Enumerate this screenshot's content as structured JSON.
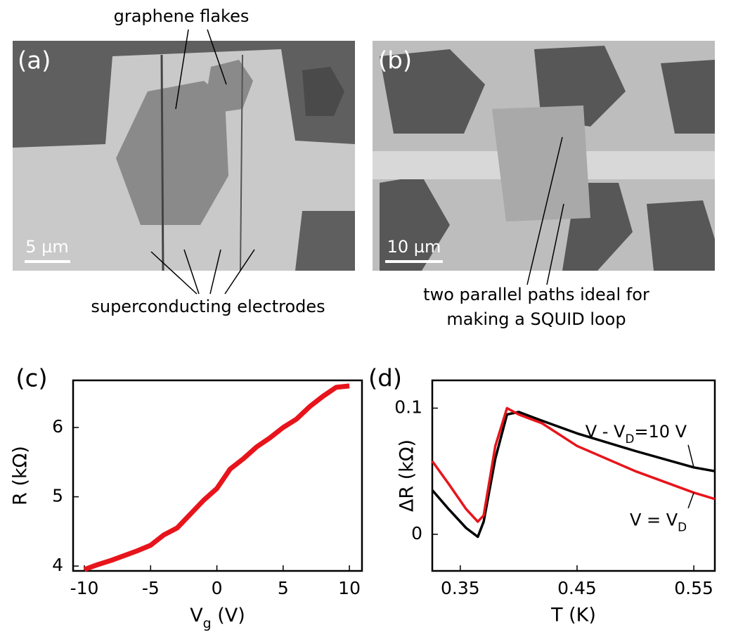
{
  "panels": {
    "a": {
      "label": "(a)",
      "scale_bar": "5 µm"
    },
    "b": {
      "label": "(b)",
      "scale_bar": "10 µm"
    }
  },
  "annotations": {
    "graphene_flakes": "graphene flakes",
    "electrodes": "superconducting electrodes",
    "squid": [
      "two parallel paths ideal for",
      "making a SQUID loop"
    ]
  },
  "chart_data": [
    {
      "type": "line",
      "panel_label": "(c)",
      "xlabel": [
        "V",
        "g",
        " (V)"
      ],
      "ylabel": "R (kΩ)",
      "color": "#e8141b",
      "x": [
        -10,
        -9,
        -8,
        -7,
        -6,
        -5,
        -4,
        -3,
        -2,
        -1,
        0,
        1,
        2,
        3,
        4,
        5,
        6,
        7,
        8,
        9,
        10
      ],
      "values": [
        3.95,
        4.02,
        4.08,
        4.15,
        4.22,
        4.3,
        4.45,
        4.55,
        4.75,
        4.95,
        5.12,
        5.4,
        5.55,
        5.72,
        5.85,
        6.0,
        6.12,
        6.3,
        6.45,
        6.58,
        6.6
      ],
      "xlim": [
        -10.85,
        10.95
      ],
      "xticks": [
        -10,
        -5,
        0,
        5,
        10
      ],
      "ylim": [
        3.93,
        6.68
      ],
      "yticks": [
        4,
        5,
        6
      ]
    },
    {
      "type": "line",
      "panel_label": "(d)",
      "xlabel": "T (K)",
      "ylabel": "ΔR (kΩ)",
      "x": [
        0.326,
        0.34,
        0.355,
        0.365,
        0.37,
        0.38,
        0.39,
        0.4,
        0.42,
        0.45,
        0.5,
        0.55,
        0.568
      ],
      "series": [
        {
          "name": [
            "V - V",
            "D",
            "=10 V"
          ],
          "color": "#000000",
          "values": [
            0.035,
            0.02,
            0.005,
            -0.002,
            0.01,
            0.06,
            0.095,
            0.097,
            0.09,
            0.08,
            0.066,
            0.053,
            0.05
          ]
        },
        {
          "name": [
            "V = V",
            "D"
          ],
          "color": "#e8141b",
          "values": [
            0.058,
            0.04,
            0.02,
            0.01,
            0.015,
            0.07,
            0.1,
            0.095,
            0.088,
            0.07,
            0.05,
            0.033,
            0.028
          ]
        }
      ],
      "xlim": [
        0.326,
        0.568
      ],
      "xticks": [
        0.35,
        0.45,
        0.55
      ],
      "ylim": [
        -0.029,
        0.122
      ],
      "yticks": [
        0,
        0.1
      ]
    }
  ]
}
